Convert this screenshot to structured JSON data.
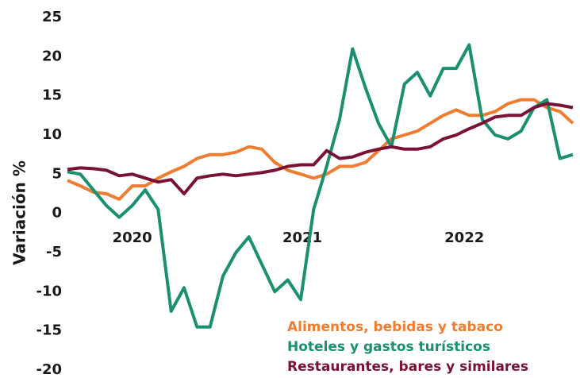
{
  "chart_data": {
    "type": "line",
    "y_label": "Variación %",
    "x": [
      2020.1,
      2020.18,
      2020.26,
      2020.34,
      2020.42,
      2020.5,
      2020.58,
      2020.66,
      2020.74,
      2020.82,
      2020.9,
      2020.98,
      2021.06,
      2021.14,
      2021.22,
      2021.3,
      2021.38,
      2021.46,
      2021.54,
      2021.62,
      2021.7,
      2021.78,
      2021.86,
      2021.94,
      2022.02,
      2022.1,
      2022.18,
      2022.26,
      2022.34,
      2022.42,
      2022.5,
      2022.58,
      2022.66,
      2022.74,
      2022.82,
      2022.9,
      2022.98,
      2023.06,
      2023.14,
      2023.22
    ],
    "xlim": [
      2020.1,
      2023.22
    ],
    "xticks": [
      {
        "value": 2020.5,
        "label": "2020"
      },
      {
        "value": 2021.55,
        "label": "2021"
      },
      {
        "value": 2022.55,
        "label": "2022"
      }
    ],
    "ylim": [
      -20,
      25
    ],
    "yticks": [
      -20,
      -15,
      -10,
      -5,
      0,
      5,
      10,
      15,
      20,
      25
    ],
    "grid": false,
    "legend": "lower right",
    "series": [
      {
        "name": "Alimentos, bebidas y tabaco",
        "color": "#ee7d31",
        "values": [
          4.2,
          3.5,
          2.7,
          2.5,
          1.8,
          3.5,
          3.5,
          4.5,
          5.3,
          6.0,
          7.0,
          7.5,
          7.5,
          7.8,
          8.5,
          8.2,
          6.5,
          5.5,
          5.0,
          4.5,
          5.0,
          6.0,
          6.0,
          6.5,
          8.0,
          9.5,
          10,
          10.5,
          11.5,
          12.5,
          13.2,
          12.5,
          12.5,
          13,
          14,
          14.5,
          14.5,
          13.5,
          13,
          11.5
        ]
      },
      {
        "name": "Hoteles y gastos turísticos",
        "color": "#1a9070",
        "values": [
          5.3,
          5.0,
          3.0,
          1.0,
          -0.5,
          1.0,
          3.0,
          0.5,
          -12.5,
          -9.5,
          -14.5,
          -14.5,
          -8,
          -5,
          -3,
          -6.5,
          -10,
          -8.5,
          -11,
          0.5,
          6,
          12,
          21,
          16,
          11.5,
          8.5,
          16.5,
          18,
          15,
          18.5,
          18.5,
          21.5,
          12,
          10,
          9.5,
          10.5,
          13.5,
          14.5,
          7,
          7.5
        ]
      },
      {
        "name": "Restaurantes, bares y similares",
        "color": "#7a1136",
        "values": [
          5.6,
          5.8,
          5.7,
          5.5,
          4.8,
          5.0,
          4.5,
          4.0,
          4.3,
          2.5,
          4.5,
          4.8,
          5.0,
          4.8,
          5.0,
          5.2,
          5.5,
          6.0,
          6.2,
          6.2,
          8.0,
          7.0,
          7.2,
          7.8,
          8.2,
          8.5,
          8.2,
          8.2,
          8.5,
          9.5,
          10,
          10.8,
          11.5,
          12.3,
          12.5,
          12.5,
          13.5,
          14,
          13.8,
          13.5
        ]
      }
    ]
  }
}
